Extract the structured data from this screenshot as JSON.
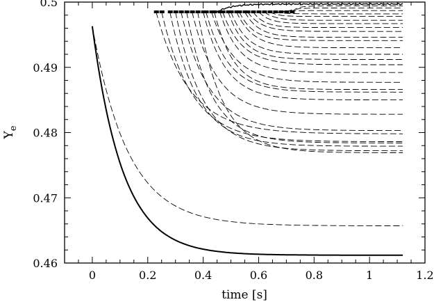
{
  "chart_data": {
    "type": "line",
    "xlabel": "time [s]",
    "ylabel": {
      "main": "Y",
      "subscript": "e"
    },
    "xlim": [
      -0.1,
      1.2
    ],
    "ylim": [
      0.46,
      0.5
    ],
    "xticks": [
      0,
      0.2,
      0.4,
      0.6,
      0.8,
      1,
      1.2
    ],
    "xtick_labels": [
      "0",
      "0.2",
      "0.4",
      "0.6",
      "0.8",
      "1",
      "1.2"
    ],
    "yticks": [
      0.46,
      0.47,
      0.48,
      0.49,
      0.5
    ],
    "ytick_labels": [
      "0.46",
      "0.47",
      "0.48",
      "0.49",
      "0.5"
    ],
    "grid": false,
    "legend": "none",
    "x_end": 1.12,
    "solid_series": [
      {
        "style": "solid-thick",
        "start": 0.4963,
        "end": 0.4612,
        "tau": 0.11,
        "t0": 0.0
      },
      {
        "style": "solid-top",
        "start": 0.4985,
        "end": 0.4997,
        "tau": 0.05,
        "t0": 0.45
      }
    ],
    "dashed_series": [
      {
        "t0": 0.0,
        "start": 0.4963,
        "end": 0.4657,
        "tau": 0.13
      },
      {
        "t0": 0.23,
        "start": 0.4985,
        "end": 0.4798,
        "tau": 0.12
      },
      {
        "t0": 0.25,
        "start": 0.4985,
        "end": 0.4786,
        "tau": 0.11
      },
      {
        "t0": 0.28,
        "start": 0.4985,
        "end": 0.4779,
        "tau": 0.1
      },
      {
        "t0": 0.3,
        "start": 0.4985,
        "end": 0.4772,
        "tau": 0.1
      },
      {
        "t0": 0.32,
        "start": 0.4985,
        "end": 0.4803,
        "tau": 0.1
      },
      {
        "t0": 0.34,
        "start": 0.4985,
        "end": 0.4784,
        "tau": 0.09
      },
      {
        "t0": 0.36,
        "start": 0.4985,
        "end": 0.4828,
        "tau": 0.09
      },
      {
        "t0": 0.38,
        "start": 0.4985,
        "end": 0.4769,
        "tau": 0.09
      },
      {
        "t0": 0.4,
        "start": 0.4985,
        "end": 0.485,
        "tau": 0.08
      },
      {
        "t0": 0.41,
        "start": 0.4985,
        "end": 0.4862,
        "tau": 0.08
      },
      {
        "t0": 0.43,
        "start": 0.4985,
        "end": 0.4877,
        "tau": 0.08
      },
      {
        "t0": 0.44,
        "start": 0.4985,
        "end": 0.4866,
        "tau": 0.07
      },
      {
        "t0": 0.46,
        "start": 0.4985,
        "end": 0.4892,
        "tau": 0.07
      },
      {
        "t0": 0.47,
        "start": 0.4985,
        "end": 0.4904,
        "tau": 0.07
      },
      {
        "t0": 0.49,
        "start": 0.4985,
        "end": 0.4912,
        "tau": 0.06
      },
      {
        "t0": 0.5,
        "start": 0.4985,
        "end": 0.492,
        "tau": 0.06
      },
      {
        "t0": 0.52,
        "start": 0.4985,
        "end": 0.493,
        "tau": 0.06
      },
      {
        "t0": 0.53,
        "start": 0.4985,
        "end": 0.4941,
        "tau": 0.05
      },
      {
        "t0": 0.55,
        "start": 0.4985,
        "end": 0.4946,
        "tau": 0.05
      },
      {
        "t0": 0.56,
        "start": 0.4985,
        "end": 0.4955,
        "tau": 0.05
      },
      {
        "t0": 0.58,
        "start": 0.4985,
        "end": 0.4961,
        "tau": 0.04
      },
      {
        "t0": 0.6,
        "start": 0.4985,
        "end": 0.4967,
        "tau": 0.04
      },
      {
        "t0": 0.62,
        "start": 0.4985,
        "end": 0.4972,
        "tau": 0.04
      },
      {
        "t0": 0.64,
        "start": 0.4985,
        "end": 0.4978,
        "tau": 0.03
      },
      {
        "t0": 0.66,
        "start": 0.4985,
        "end": 0.4982,
        "tau": 0.03
      },
      {
        "t0": 0.68,
        "start": 0.4985,
        "end": 0.4987,
        "tau": 0.03
      },
      {
        "t0": 0.7,
        "start": 0.4985,
        "end": 0.4991,
        "tau": 0.03
      },
      {
        "t0": 0.72,
        "start": 0.4985,
        "end": 0.4994,
        "tau": 0.02
      }
    ]
  }
}
